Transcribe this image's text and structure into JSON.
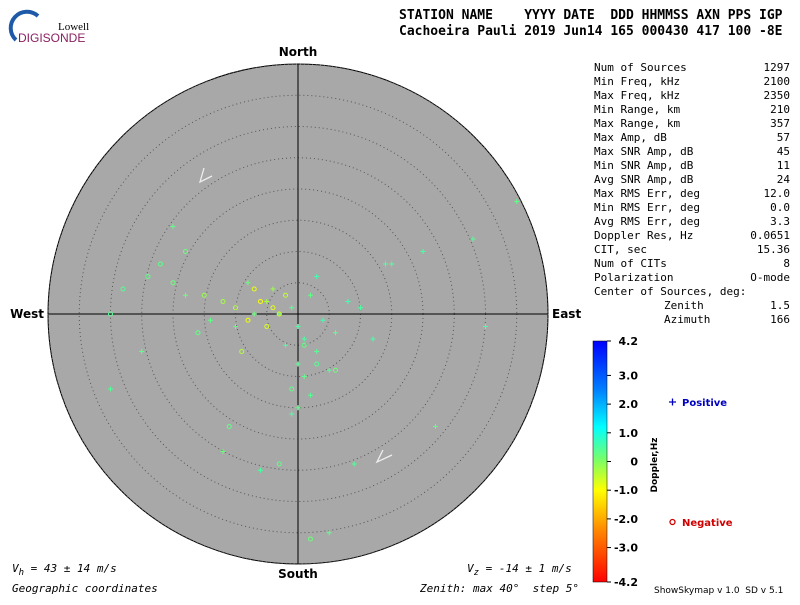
{
  "logo": {
    "top": "Lowell",
    "bottom": "DIGISONDE"
  },
  "header": {
    "line1": "STATION NAME    YYYY DATE  DDD HHMMSS AXN PPS IGP",
    "line2": "Cachoeira Pauli 2019 Jun14 165 000430 417 100 -8E"
  },
  "stats": {
    "rows": [
      [
        "Num of Sources",
        "1297"
      ],
      [
        "Min Freq, kHz",
        "2100"
      ],
      [
        "Max Freq, kHz",
        "2350"
      ],
      [
        "Min Range, km",
        "210"
      ],
      [
        "Max Range, km",
        "357"
      ],
      [
        "Max Amp, dB",
        "57"
      ],
      [
        "Max SNR Amp, dB",
        "45"
      ],
      [
        "Min SNR Amp, dB",
        "11"
      ],
      [
        "Avg SNR Amp, dB",
        "24"
      ],
      [
        "Max RMS Err, deg",
        "12.0"
      ],
      [
        "Min RMS Err, deg",
        "0.0"
      ],
      [
        "Avg RMS Err, deg",
        "3.3"
      ],
      [
        "Doppler Res, Hz",
        "0.0651"
      ],
      [
        "CIT, sec",
        "15.36"
      ],
      [
        "Num of CITs",
        "8"
      ],
      [
        "Polarization",
        "O-mode"
      ]
    ],
    "center_label": "Center of Sources, deg:",
    "center_rows": [
      [
        "Zenith",
        "1.5"
      ],
      [
        "Azimuth",
        "166"
      ]
    ]
  },
  "footer": {
    "vh": {
      "symbol": "V",
      "sub": "h",
      "text": " = 43 ± 14 m/s"
    },
    "vz": {
      "symbol": "V",
      "sub": "z",
      "text": " = -14 ± 1 m/s"
    },
    "coords": "Geographic coordinates",
    "zenith": "Zenith: max 40°  step 5°",
    "version": "ShowSkymap v 1.0  SD v 5.1"
  },
  "chart_data": {
    "type": "polar",
    "directions": {
      "north": "North",
      "south": "South",
      "east": "East",
      "west": "West"
    },
    "xlim": [
      -40,
      40
    ],
    "ylim": [
      -40,
      40
    ],
    "rticks": [
      5,
      10,
      15,
      20,
      25,
      30,
      35,
      40
    ],
    "series": [
      {
        "name": "Positive",
        "marker": "plus",
        "color": "#0000c0",
        "x": [
          -3,
          -1,
          0,
          2,
          4,
          -5,
          -7,
          1,
          3,
          6,
          8,
          -2,
          0,
          1,
          -4,
          10,
          -10,
          5,
          -8,
          12,
          -14,
          2,
          3,
          0,
          -1,
          15,
          -18,
          20,
          -25,
          28,
          35,
          30,
          -30,
          22,
          -12,
          -6,
          5,
          9,
          14,
          -20
        ],
        "values": [
          0,
          1,
          -2,
          3,
          -1,
          2,
          0,
          -4,
          -6,
          -3,
          2,
          -5,
          -8,
          -10,
          4,
          1,
          -2,
          -9,
          5,
          -4,
          -1,
          -13,
          6,
          -15,
          -16,
          8,
          3,
          10,
          -6,
          12,
          18,
          -2,
          -12,
          -18,
          -22,
          -25,
          -35,
          -24,
          8,
          14
        ],
        "doppler": [
          0.3,
          0.4,
          0.5,
          0.3,
          0.6,
          -0.3,
          0.2,
          0.5,
          0.4,
          0.3,
          0.6,
          0.5,
          0.4,
          0.3,
          -0.2,
          0.5,
          0.3,
          0.4,
          0.2,
          0.5,
          0.3,
          0.4,
          0.6,
          0.3,
          0.5,
          0.4,
          0.2,
          0.5,
          0.3,
          0.4,
          0.3,
          0.5,
          0.4,
          0.3,
          0.2,
          0.5,
          0.3,
          0.4,
          0.5,
          0.3
        ]
      },
      {
        "name": "Negative",
        "marker": "circle",
        "color": "#d00000",
        "x": [
          -4,
          -6,
          -3,
          -8,
          -2,
          -10,
          -5,
          -12,
          -7,
          -15,
          -20,
          -24,
          -9,
          1,
          3,
          -1,
          6,
          -16,
          -28,
          -18,
          -11,
          -3,
          2,
          -22,
          -30
        ],
        "values": [
          1,
          2,
          0,
          -1,
          3,
          1,
          -2,
          2,
          4,
          3,
          5,
          6,
          -6,
          -5,
          -8,
          -12,
          -9,
          -3,
          4,
          10,
          -18,
          -24,
          -36,
          8,
          0
        ],
        "doppler": [
          -0.8,
          -1.0,
          -0.6,
          -0.9,
          -0.5,
          -0.4,
          -0.7,
          -0.3,
          -0.8,
          -0.2,
          0.2,
          0.3,
          -0.4,
          0.3,
          0.4,
          0.3,
          0.2,
          0.3,
          0.4,
          0.2,
          0.3,
          0.3,
          0.2,
          0.3,
          0.4
        ]
      }
    ],
    "colorbar": {
      "label": "Doppler,Hz",
      "ylim": [
        -4.2,
        4.2
      ],
      "yticks": [
        4.2,
        {
          "value": 3,
          "label": "3.0"
        },
        {
          "value": 2,
          "label": "2.0"
        },
        {
          "value": 1,
          "label": "1.0"
        },
        0,
        {
          "value": -1,
          "label": "-1.0"
        },
        {
          "value": -2,
          "label": "-2.0"
        },
        {
          "value": -3,
          "label": "-3.0"
        },
        -4.2
      ],
      "colormap": [
        [
          -4.2,
          "#ff0000"
        ],
        [
          -2.5,
          "#ff8000"
        ],
        [
          -1,
          "#ffff00"
        ],
        [
          0,
          "#80ff60"
        ],
        [
          1.2,
          "#00ffff"
        ],
        [
          2.5,
          "#0080ff"
        ],
        [
          4.2,
          "#0000ff"
        ]
      ]
    }
  }
}
